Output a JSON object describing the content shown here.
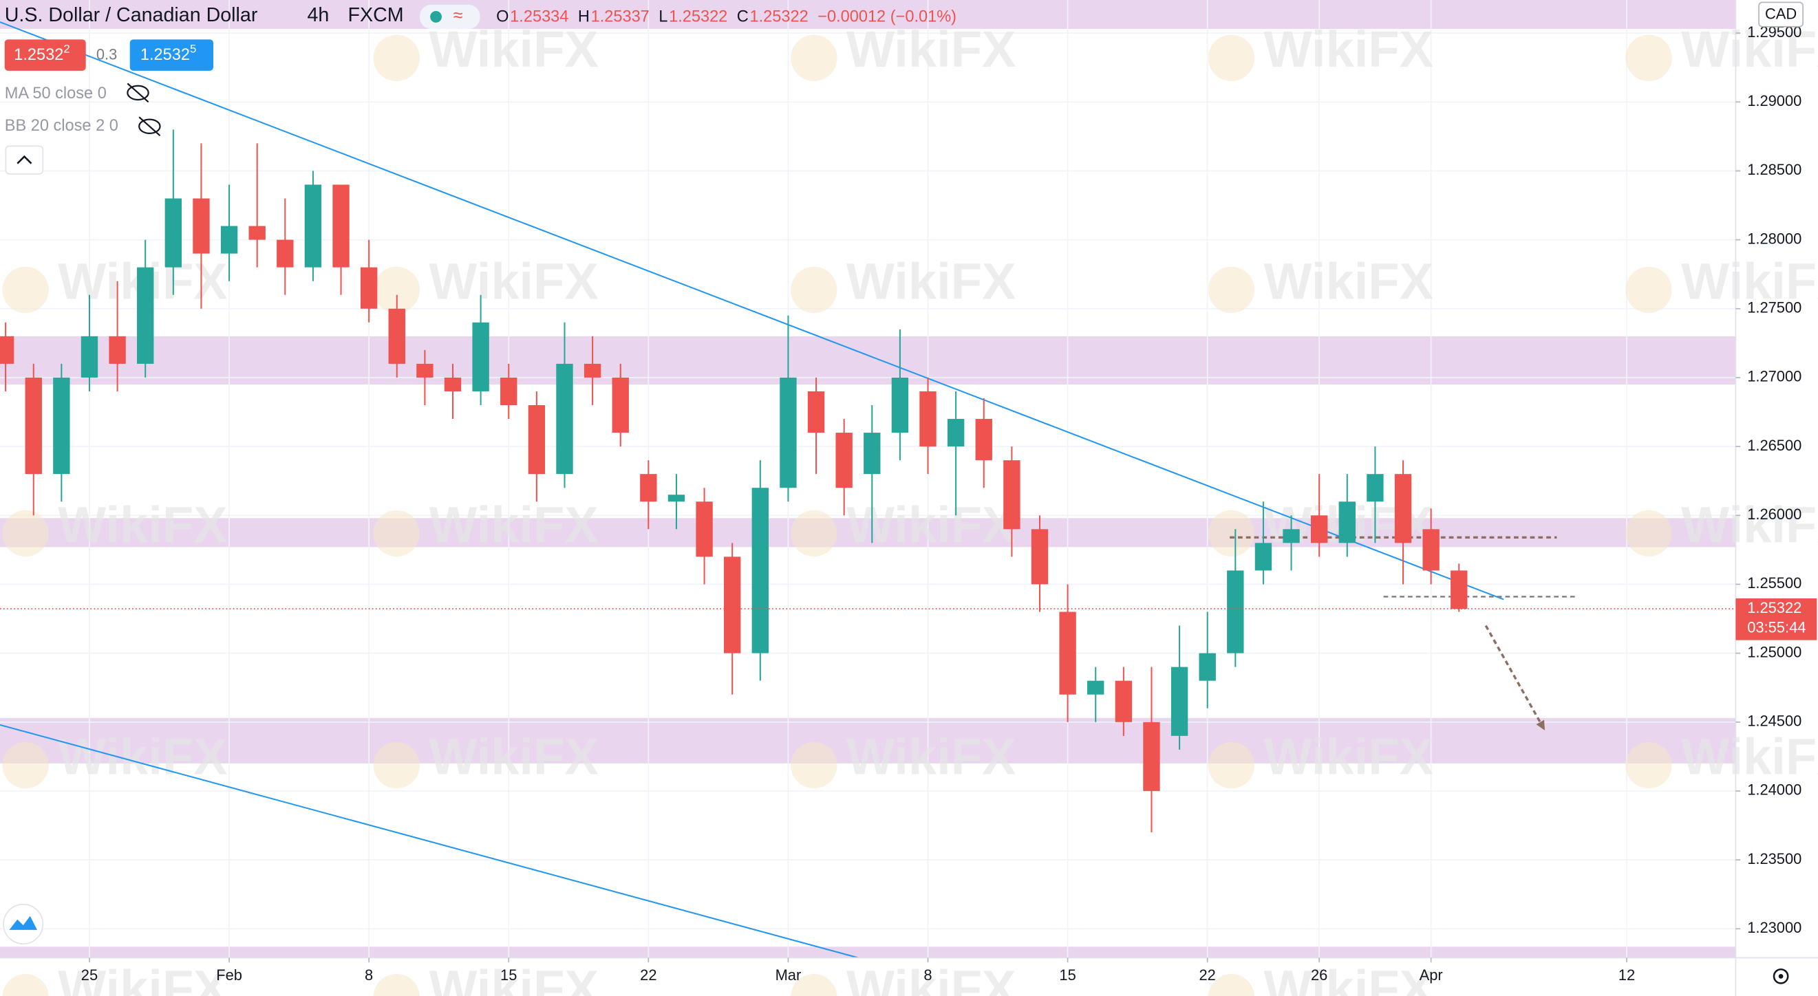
{
  "chart_data": {
    "type": "candlestick",
    "symbol": "U.S. Dollar / Canadian Dollar",
    "interval": "4h",
    "source": "FXCM",
    "ohlc_labels": [
      {
        "label": "O",
        "value": "1.25334"
      },
      {
        "label": "H",
        "value": "1.25337"
      },
      {
        "label": "L",
        "value": "1.25322"
      },
      {
        "label": "C",
        "value": "1.25322"
      }
    ],
    "change": "−0.00012 (−0.01%)",
    "sell": {
      "price": "1.2532",
      "pip": "2"
    },
    "spread": "0.3",
    "buy": {
      "price": "1.2532",
      "pip": "5"
    },
    "indicators": [
      "MA 50 close 0",
      "BB 20 close 2 0"
    ],
    "currency": "CAD",
    "last_price": {
      "value": 1.25322,
      "label": "1.25322"
    },
    "countdown": "03:55:44",
    "watermark": "WikiFX",
    "up_color": "#26a69a",
    "down_color": "#ef5350",
    "grid": true,
    "open": [
      1.273,
      1.27,
      1.263,
      1.27,
      1.273,
      1.271,
      1.278,
      1.283,
      1.279,
      1.281,
      1.28,
      1.278,
      1.284,
      1.278,
      1.275,
      1.271,
      1.27,
      1.269,
      1.27,
      1.268,
      1.263,
      1.271,
      1.27,
      1.263,
      1.261,
      1.261,
      1.257,
      1.25,
      1.262,
      1.269,
      1.266,
      1.263,
      1.266,
      1.269,
      1.265,
      1.267,
      1.264,
      1.259,
      1.253,
      1.247,
      1.248,
      1.245,
      1.244,
      1.248,
      1.25,
      1.256,
      1.258,
      1.26,
      1.258,
      1.261,
      1.263,
      1.259,
      1.256
    ],
    "high": [
      1.274,
      1.271,
      1.271,
      1.276,
      1.277,
      1.28,
      1.288,
      1.287,
      1.284,
      1.287,
      1.283,
      1.285,
      1.284,
      1.28,
      1.276,
      1.272,
      1.271,
      1.276,
      1.271,
      1.269,
      1.274,
      1.273,
      1.271,
      1.264,
      1.263,
      1.262,
      1.258,
      1.264,
      1.2745,
      1.27,
      1.267,
      1.268,
      1.2735,
      1.27,
      1.269,
      1.2685,
      1.265,
      1.26,
      1.255,
      1.249,
      1.249,
      1.249,
      1.252,
      1.253,
      1.259,
      1.261,
      1.26,
      1.263,
      1.263,
      1.265,
      1.264,
      1.2605,
      1.2565
    ],
    "low": [
      1.269,
      1.26,
      1.261,
      1.269,
      1.269,
      1.27,
      1.276,
      1.275,
      1.277,
      1.278,
      1.276,
      1.277,
      1.276,
      1.274,
      1.27,
      1.268,
      1.267,
      1.268,
      1.267,
      1.261,
      1.262,
      1.268,
      1.265,
      1.259,
      1.259,
      1.255,
      1.247,
      1.248,
      1.261,
      1.263,
      1.26,
      1.258,
      1.264,
      1.263,
      1.26,
      1.262,
      1.257,
      1.253,
      1.245,
      1.245,
      1.244,
      1.237,
      1.243,
      1.246,
      1.249,
      1.255,
      1.256,
      1.257,
      1.257,
      1.258,
      1.255,
      1.255,
      1.253
    ],
    "close": [
      1.271,
      1.263,
      1.27,
      1.273,
      1.271,
      1.278,
      1.283,
      1.279,
      1.281,
      1.28,
      1.278,
      1.284,
      1.278,
      1.275,
      1.271,
      1.27,
      1.269,
      1.274,
      1.268,
      1.263,
      1.271,
      1.27,
      1.266,
      1.261,
      1.2615,
      1.257,
      1.25,
      1.262,
      1.27,
      1.266,
      1.262,
      1.266,
      1.27,
      1.265,
      1.267,
      1.264,
      1.259,
      1.255,
      1.247,
      1.248,
      1.245,
      1.24,
      1.249,
      1.25,
      1.256,
      1.258,
      1.259,
      1.258,
      1.261,
      1.263,
      1.258,
      1.256,
      1.25322
    ],
    "xlim": [
      -0.2,
      61.9
    ],
    "ylim": [
      1.2279,
      1.2974
    ],
    "xticks": [
      {
        "value": 3,
        "label": "25"
      },
      {
        "value": 8,
        "label": "Feb"
      },
      {
        "value": 13,
        "label": "8"
      },
      {
        "value": 18,
        "label": "15"
      },
      {
        "value": 23,
        "label": "22"
      },
      {
        "value": 28,
        "label": "Mar"
      },
      {
        "value": 33,
        "label": "8"
      },
      {
        "value": 38,
        "label": "15"
      },
      {
        "value": 43,
        "label": "22"
      },
      {
        "value": 47,
        "label": "26"
      },
      {
        "value": 51,
        "label": "Apr"
      },
      {
        "value": 58,
        "label": "12"
      }
    ],
    "yticks": [
      {
        "value": 1.295,
        "label": "1.29500"
      },
      {
        "value": 1.29,
        "label": "1.29000"
      },
      {
        "value": 1.285,
        "label": "1.28500"
      },
      {
        "value": 1.28,
        "label": "1.28000"
      },
      {
        "value": 1.275,
        "label": "1.27500"
      },
      {
        "value": 1.27,
        "label": "1.27000"
      },
      {
        "value": 1.265,
        "label": "1.26500"
      },
      {
        "value": 1.26,
        "label": "1.26000"
      },
      {
        "value": 1.255,
        "label": "1.25500"
      },
      {
        "value": 1.25,
        "label": "1.25000"
      },
      {
        "value": 1.245,
        "label": "1.24500"
      },
      {
        "value": 1.24,
        "label": "1.24000"
      },
      {
        "value": 1.235,
        "label": "1.23500"
      },
      {
        "value": 1.23,
        "label": "1.23000"
      }
    ],
    "zones": [
      {
        "low": 1.2953,
        "high": 1.2974,
        "color": "#e9d5ee"
      },
      {
        "low": 1.2695,
        "high": 1.273,
        "color": "#e9d5ee"
      },
      {
        "low": 1.2577,
        "high": 1.2598,
        "color": "#e9d5ee"
      },
      {
        "low": 1.242,
        "high": 1.2453,
        "color": "#e9d5ee"
      },
      {
        "low": 1.2279,
        "high": 1.2287,
        "color": "#e9d5ee"
      }
    ],
    "trendlines": [
      {
        "x": [
          -0.2,
          53.6
        ],
        "y": [
          1.2958,
          1.2539
        ],
        "color": "#2196f3"
      },
      {
        "x": [
          -0.2,
          30.5
        ],
        "y": [
          1.2448,
          1.2279
        ],
        "color": "#2196f3"
      }
    ],
    "levels": [
      {
        "x": [
          43.8,
          55.5
        ],
        "y": 1.2584,
        "color": "#8d6e63"
      },
      {
        "x": [
          49.3,
          56.2
        ],
        "y": 1.2541,
        "color": "#787b86"
      }
    ],
    "arrow": {
      "x": [
        52.96,
        55.07
      ],
      "y": [
        1.252,
        1.2444
      ],
      "color": "#8d6e63"
    }
  }
}
